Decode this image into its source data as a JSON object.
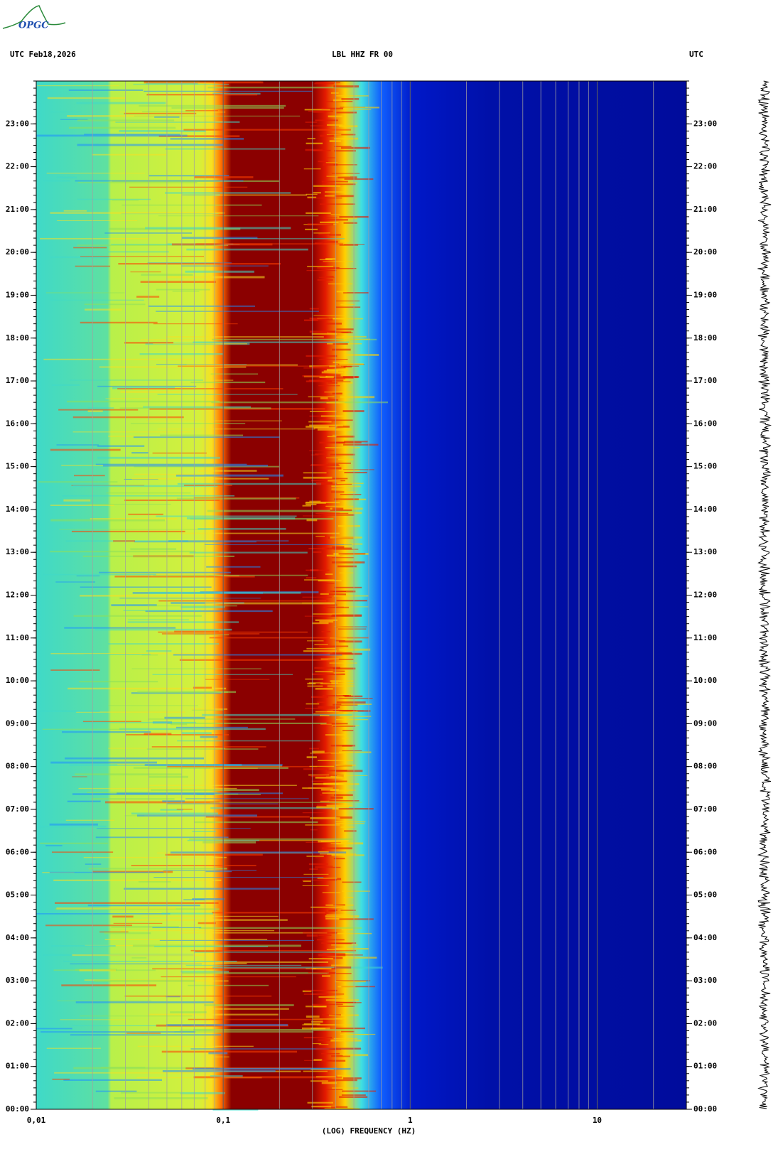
{
  "logo": "OPGC",
  "chart_data": {
    "type": "spectrogram",
    "title_left": "UTC  Feb18,2026",
    "title": "LBL HHZ FR 00",
    "title_right": "UTC",
    "xlabel": "(LOG) FREQUENCY (HZ)",
    "log_x": true,
    "xlim": [
      0.01,
      30
    ],
    "xticks": [
      {
        "value": 0.01,
        "label": "0,01"
      },
      {
        "value": 0.1,
        "label": "0,1"
      },
      1,
      10
    ],
    "xgrid": [
      0.02,
      0.03,
      0.04,
      0.05,
      0.06,
      0.07,
      0.08,
      0.09,
      0.2,
      0.3,
      0.4,
      0.5,
      0.6,
      0.7,
      0.8,
      0.9,
      2,
      3,
      4,
      5,
      6,
      7,
      8,
      9,
      20
    ],
    "ylim": [
      0,
      24
    ],
    "yticks": [
      {
        "value": 0,
        "label": "00:00"
      },
      {
        "value": 1,
        "label": "01:00"
      },
      {
        "value": 2,
        "label": "02:00"
      },
      {
        "value": 3,
        "label": "03:00"
      },
      {
        "value": 4,
        "label": "04:00"
      },
      {
        "value": 5,
        "label": "05:00"
      },
      {
        "value": 6,
        "label": "06:00"
      },
      {
        "value": 7,
        "label": "07:00"
      },
      {
        "value": 8,
        "label": "08:00"
      },
      {
        "value": 9,
        "label": "09:00"
      },
      {
        "value": 10,
        "label": "10:00"
      },
      {
        "value": 11,
        "label": "11:00"
      },
      {
        "value": 12,
        "label": "12:00"
      },
      {
        "value": 13,
        "label": "13:00"
      },
      {
        "value": 14,
        "label": "14:00"
      },
      {
        "value": 15,
        "label": "15:00"
      },
      {
        "value": 16,
        "label": "16:00"
      },
      {
        "value": 17,
        "label": "17:00"
      },
      {
        "value": 18,
        "label": "18:00"
      },
      {
        "value": 19,
        "label": "19:00"
      },
      {
        "value": 20,
        "label": "20:00"
      },
      {
        "value": 21,
        "label": "21:00"
      },
      {
        "value": 22,
        "label": "22:00"
      },
      {
        "value": 23,
        "label": "23:00"
      }
    ]
  }
}
